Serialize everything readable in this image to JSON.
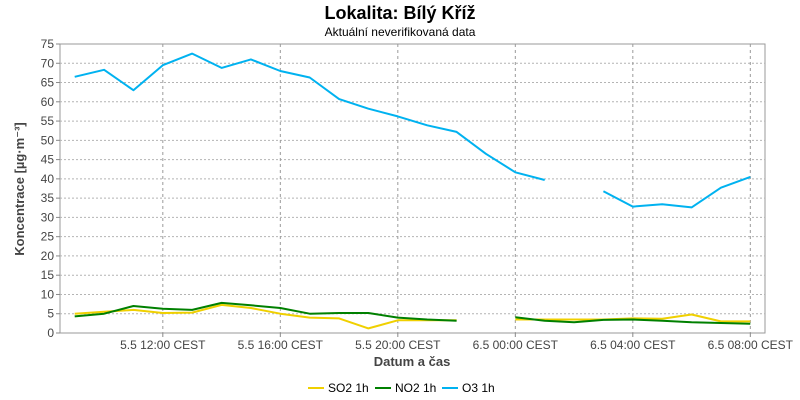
{
  "chart_data": {
    "type": "line",
    "title": "Lokalita: Bílý Kříž",
    "subtitle": "Aktuální neverifikovaná data",
    "xlabel": "Datum a čas",
    "ylabel": "Koncentrace [µg·m⁻³]",
    "ylim": [
      0,
      75
    ],
    "yticks": [
      0,
      5,
      10,
      15,
      20,
      25,
      30,
      35,
      40,
      45,
      50,
      55,
      60,
      65,
      70,
      75
    ],
    "x_hours": [
      9,
      10,
      11,
      12,
      13,
      14,
      15,
      16,
      17,
      18,
      19,
      20,
      21,
      22,
      23,
      24,
      25,
      26,
      27,
      28,
      29,
      30,
      31,
      32
    ],
    "xticks": [
      {
        "hour": 12,
        "label": "5.5 12:00 CEST"
      },
      {
        "hour": 16,
        "label": "5.5 16:00 CEST"
      },
      {
        "hour": 20,
        "label": "5.5 20:00 CEST"
      },
      {
        "hour": 24,
        "label": "6.5 00:00 CEST"
      },
      {
        "hour": 28,
        "label": "6.5 04:00 CEST"
      },
      {
        "hour": 32,
        "label": "6.5 08:00 CEST"
      }
    ],
    "x_range_hours": [
      8.5,
      32.5
    ],
    "grid": true,
    "legend_position": "bottom",
    "series": [
      {
        "name": "SO2 1h",
        "color": "#f0d000",
        "values": [
          5.0,
          5.5,
          6.0,
          5.2,
          5.3,
          7.3,
          6.5,
          5.0,
          4.0,
          3.8,
          1.2,
          3.3,
          3.3,
          3.3,
          null,
          3.5,
          3.5,
          3.5,
          3.5,
          3.8,
          3.7,
          4.8,
          3.0,
          3.0
        ]
      },
      {
        "name": "NO2 1h",
        "color": "#008000",
        "values": [
          4.3,
          5.0,
          7.0,
          6.3,
          6.0,
          7.8,
          7.2,
          6.5,
          5.0,
          5.2,
          5.2,
          4.0,
          3.5,
          3.2,
          null,
          4.1,
          3.2,
          2.8,
          3.4,
          3.5,
          3.2,
          2.8,
          2.6,
          2.4
        ]
      },
      {
        "name": "O3 1h",
        "color": "#00b2f0",
        "values": [
          66.5,
          68.3,
          63.0,
          69.5,
          72.5,
          68.8,
          71.0,
          68.0,
          66.3,
          60.7,
          58.2,
          56.2,
          53.9,
          52.2,
          46.5,
          41.7,
          39.7,
          null,
          36.8,
          32.8,
          33.4,
          32.6,
          37.7,
          40.5
        ]
      }
    ]
  }
}
